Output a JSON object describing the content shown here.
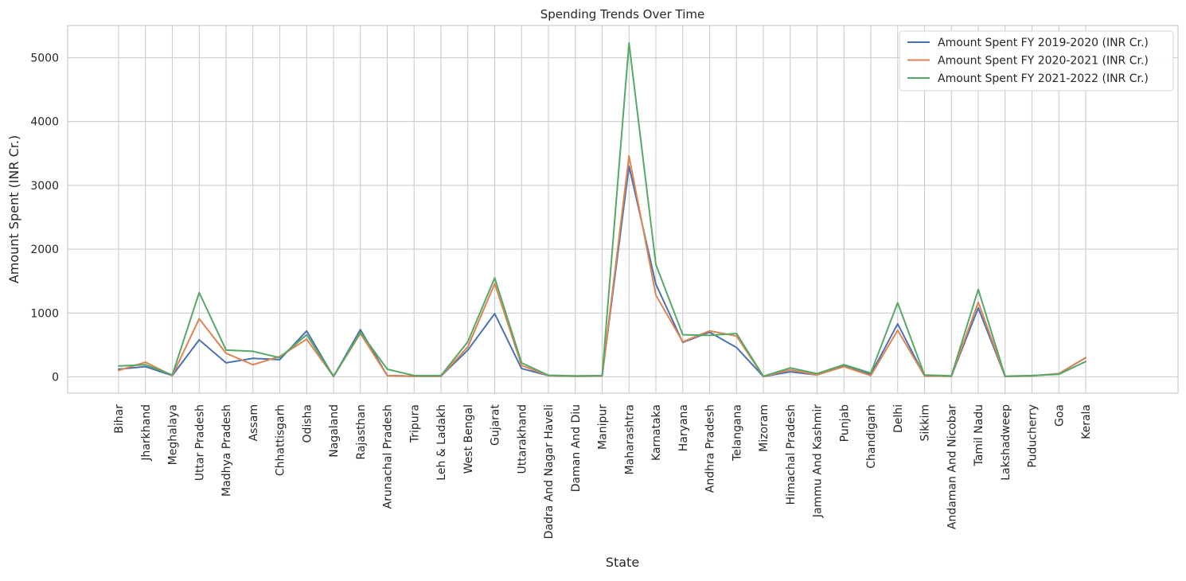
{
  "chart_data": {
    "type": "line",
    "title": "Spending Trends Over Time",
    "xlabel": "State",
    "ylabel": "Amount Spent (INR Cr.)",
    "ylim": [
      -250,
      5500
    ],
    "yticks": [
      0,
      1000,
      2000,
      3000,
      4000,
      5000
    ],
    "grid": true,
    "legend_position": "top-right",
    "categories": [
      "Bihar",
      "Jharkhand",
      "Meghalaya",
      "Uttar Pradesh",
      "Madhya Pradesh",
      "Assam",
      "Chhattisgarh",
      "Odisha",
      "Nagaland",
      "Rajasthan",
      "Arunachal Pradesh",
      "Tripura",
      "Leh & Ladakh",
      "West Bengal",
      "Gujarat",
      "Uttarakhand",
      "Dadra And Nagar Haveli",
      "Daman And Diu",
      "Manipur",
      "Maharashtra",
      "Karnataka",
      "Haryana",
      "Andhra Pradesh",
      "Telangana",
      "Mizoram",
      "Himachal Pradesh",
      "Jammu And Kashmir",
      "Punjab",
      "Chandigarh",
      "Delhi",
      "Sikkim",
      "Andaman And Nicobar",
      "Tamil Nadu",
      "Lakshadweep",
      "Puducherry",
      "Goa",
      "Kerala"
    ],
    "series": [
      {
        "name": "Amount Spent FY 2019-2020 (INR Cr.)",
        "color": "#4c72b0",
        "values": [
          120,
          160,
          20,
          580,
          220,
          290,
          270,
          720,
          5,
          740,
          20,
          10,
          10,
          420,
          990,
          130,
          20,
          10,
          15,
          3300,
          1450,
          540,
          700,
          460,
          5,
          80,
          30,
          180,
          40,
          830,
          15,
          10,
          1080,
          5,
          15,
          50,
          300
        ]
      },
      {
        "name": "Amount Spent FY 2020-2021 (INR Cr.)",
        "color": "#dd8452",
        "values": [
          100,
          230,
          20,
          910,
          370,
          190,
          320,
          590,
          5,
          680,
          20,
          10,
          10,
          470,
          1460,
          180,
          20,
          10,
          15,
          3460,
          1280,
          550,
          720,
          640,
          5,
          110,
          30,
          160,
          20,
          730,
          15,
          10,
          1170,
          5,
          15,
          50,
          300
        ]
      },
      {
        "name": "Amount Spent FY 2021-2022 (INR Cr.)",
        "color": "#55a868",
        "values": [
          170,
          190,
          30,
          1320,
          420,
          400,
          300,
          660,
          10,
          700,
          120,
          20,
          20,
          550,
          1550,
          220,
          25,
          15,
          20,
          5230,
          1760,
          660,
          650,
          680,
          10,
          140,
          50,
          190,
          60,
          1160,
          30,
          15,
          1370,
          10,
          20,
          40,
          240
        ]
      }
    ]
  }
}
